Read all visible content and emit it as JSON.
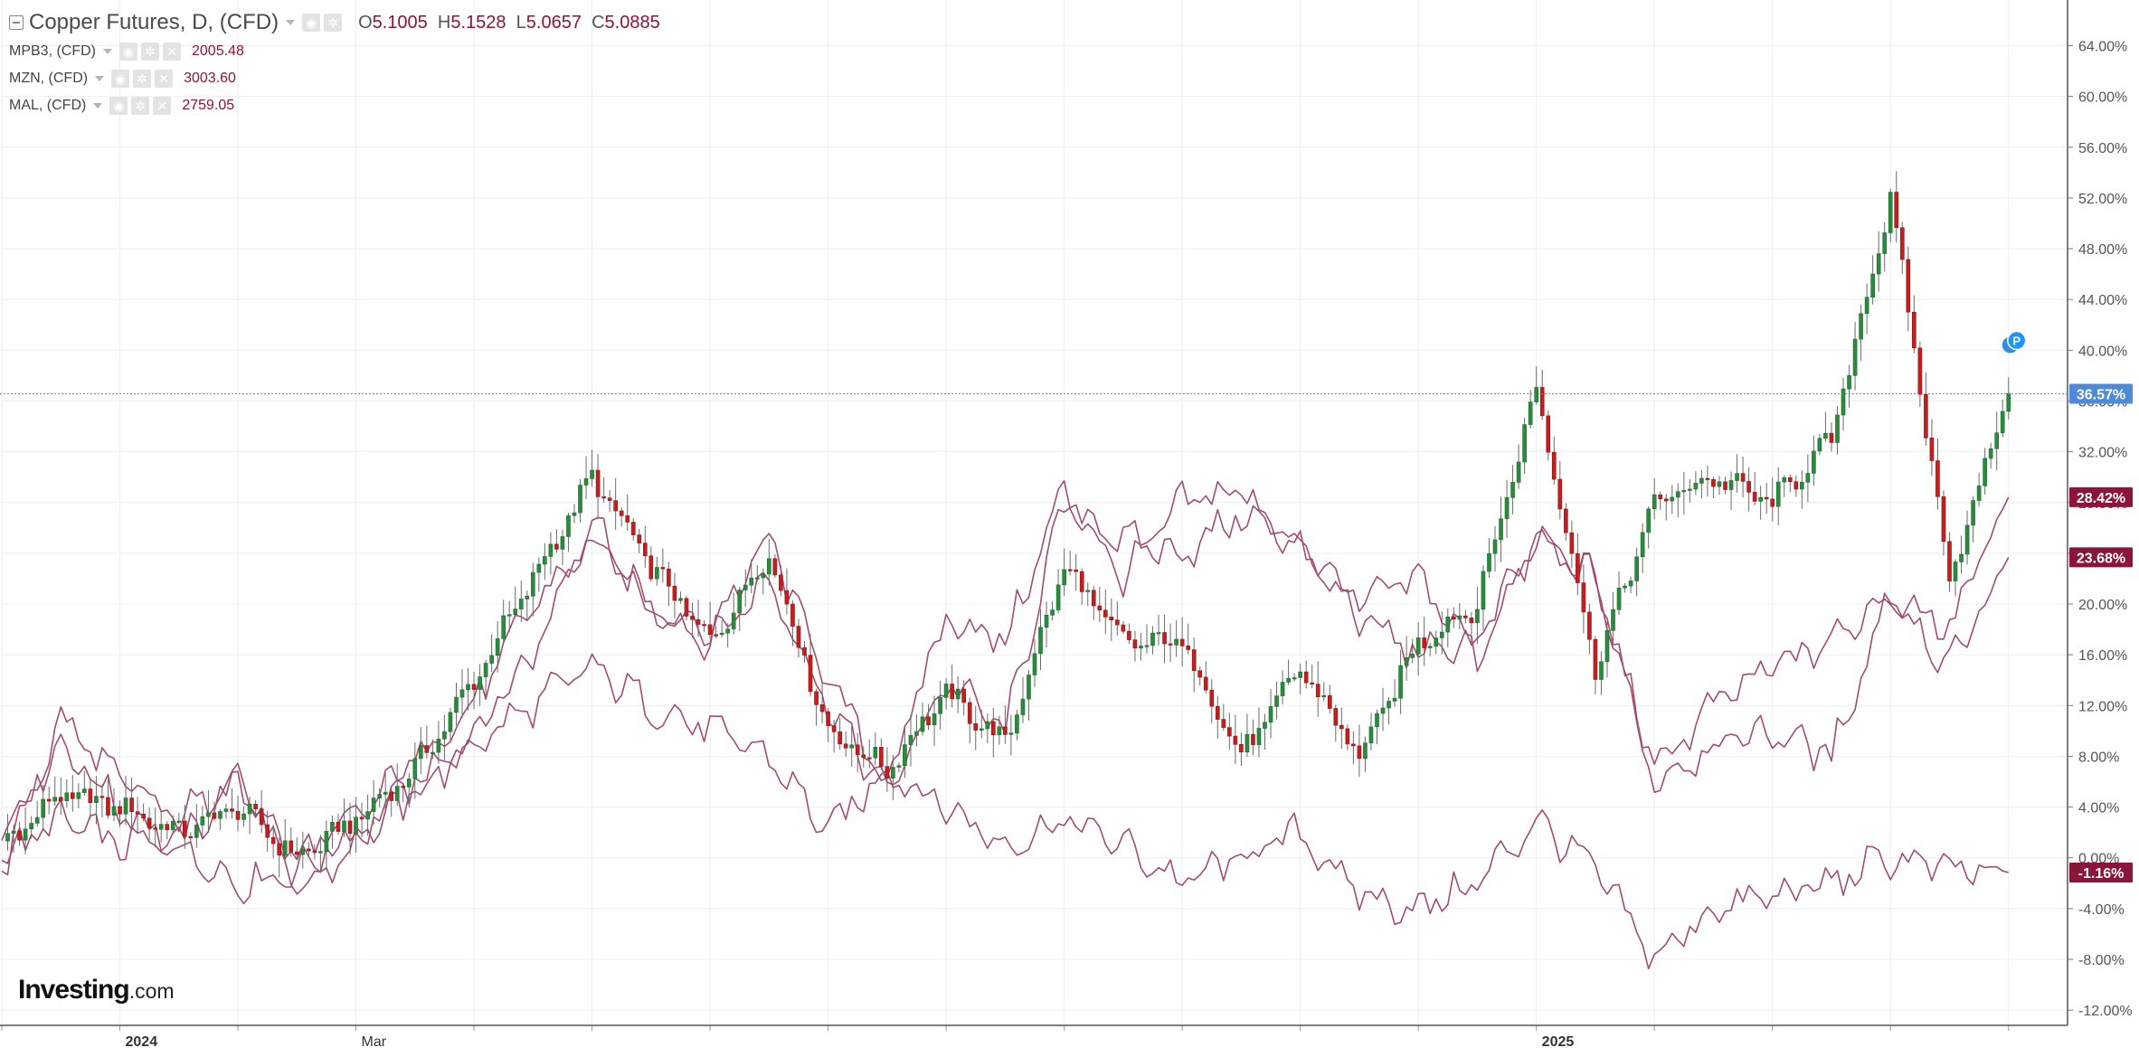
{
  "legend": {
    "main": {
      "title": "Copper Futures, D, (CFD)",
      "o_label": "O",
      "o": "5.1005",
      "h_label": "H",
      "h": "5.1528",
      "l_label": "L",
      "l": "5.0657",
      "c_label": "C",
      "c": "5.0885"
    },
    "subs": [
      {
        "name": "MPB3, (CFD)",
        "value": "2005.48"
      },
      {
        "name": "MZN, (CFD)",
        "value": "3003.60"
      },
      {
        "name": "MAL, (CFD)",
        "value": "2759.05"
      }
    ]
  },
  "logo": {
    "bold": "Investing",
    "suffix": ".com"
  },
  "colors": {
    "up": "#2b8a3e",
    "down": "#c0201f",
    "compare": "#a04d6e",
    "badge_main": "#4f8ad9",
    "badge_compare": "#8b1538",
    "grid": "#eceef2",
    "text": "#555555"
  },
  "chart_data": {
    "type": "candlestick with comparison lines",
    "y_unit": "percent change",
    "ylim": [
      -12,
      68
    ],
    "y_ticks": [
      "64.00%",
      "60.00%",
      "56.00%",
      "52.00%",
      "48.00%",
      "44.00%",
      "40.00%",
      "36.00%",
      "32.00%",
      "28.00%",
      "24.00%",
      "20.00%",
      "16.00%",
      "12.00%",
      "8.00%",
      "4.00%",
      "0.00%",
      "-4.00%",
      "-8.00%",
      "-12.00%"
    ],
    "x_labels": [
      "2024",
      "Mar",
      "2025"
    ],
    "x_label_months": [
      0,
      2,
      12
    ],
    "x_range_months": [
      -1.0,
      16.5
    ],
    "current_price_line": 36.57,
    "badges": [
      {
        "label": "36.57%",
        "value": 36.57,
        "series": "Copper Futures"
      },
      {
        "label": "28.42%",
        "value": 28.42,
        "series": "compare"
      },
      {
        "label": "23.68%",
        "value": 23.68,
        "series": "compare"
      },
      {
        "label": "-1.16%",
        "value": -1.16,
        "series": "compare"
      }
    ],
    "event_marker": "P",
    "series": [
      {
        "name": "Copper Futures",
        "kind": "candles",
        "x_months": [
          -1,
          -0.5,
          0,
          0.5,
          1,
          1.5,
          2,
          2.5,
          3,
          3.5,
          4,
          4.5,
          5,
          5.5,
          6,
          6.5,
          7,
          7.5,
          8,
          8.5,
          9,
          9.5,
          10,
          10.5,
          11,
          11.5,
          12,
          12.5,
          13,
          13.5,
          14,
          14.5,
          15,
          15.5,
          16
        ],
        "values": [
          1,
          5,
          4,
          2,
          4,
          0,
          3,
          7,
          14,
          22,
          30,
          23,
          17,
          24,
          10,
          7,
          13,
          9,
          23,
          17,
          17,
          8,
          15,
          8,
          17,
          20,
          37,
          15,
          28,
          30,
          28,
          33,
          52,
          22,
          36.6
        ]
      },
      {
        "name": "MPB3",
        "kind": "line",
        "x_months": [
          -1,
          -0.5,
          0,
          0.5,
          1,
          1.5,
          2,
          2.5,
          3,
          3.5,
          4,
          4.5,
          5,
          5.5,
          6,
          6.5,
          7,
          7.5,
          8,
          8.5,
          9,
          9.5,
          10,
          10.5,
          11,
          11.5,
          12,
          12.5,
          13,
          13.5,
          14,
          14.5,
          15,
          15.5,
          16
        ],
        "values": [
          0,
          3,
          1,
          1,
          -2,
          -1,
          2,
          5,
          9,
          12,
          15,
          12,
          10,
          8,
          2,
          7,
          4,
          1,
          3,
          1,
          -2,
          0,
          2,
          -3,
          -4,
          -2,
          3,
          -1,
          -8,
          -4,
          -3,
          -2,
          0,
          -1,
          -1.16
        ]
      },
      {
        "name": "MZN",
        "kind": "line",
        "x_months": [
          -1,
          -0.5,
          0,
          0.5,
          1,
          1.5,
          2,
          2.5,
          3,
          3.5,
          4,
          4.5,
          5,
          5.5,
          6,
          6.5,
          7,
          7.5,
          8,
          8.5,
          9,
          9.5,
          10,
          10.5,
          11,
          11.5,
          12,
          12.5,
          13,
          13.5,
          14,
          14.5,
          15,
          15.5,
          16
        ],
        "values": [
          2,
          9,
          4,
          1,
          6,
          0,
          3,
          8,
          12,
          20,
          25,
          20,
          17,
          22,
          12,
          5,
          14,
          10,
          28,
          25,
          24,
          27,
          25,
          20,
          22,
          16,
          25,
          22,
          7,
          12,
          15,
          17,
          21,
          15,
          23.68
        ]
      },
      {
        "name": "MAL",
        "kind": "line",
        "x_months": [
          -1,
          -0.5,
          0,
          0.5,
          1,
          1.5,
          2,
          2.5,
          3,
          3.5,
          4,
          4.5,
          5,
          5.5,
          6,
          6.5,
          7,
          7.5,
          8,
          8.5,
          9,
          9.5,
          10,
          10.5,
          11,
          11.5,
          12,
          12.5,
          13,
          13.5,
          14,
          14.5,
          15,
          15.5,
          16
        ],
        "values": [
          -1,
          11,
          6,
          3,
          7,
          -3,
          1,
          6,
          10,
          16,
          27,
          19,
          18,
          25,
          14,
          6,
          19,
          17,
          29,
          22,
          28,
          29,
          24,
          19,
          16,
          17,
          25,
          22,
          6,
          9,
          10,
          8,
          21,
          18,
          28.42
        ]
      }
    ]
  }
}
